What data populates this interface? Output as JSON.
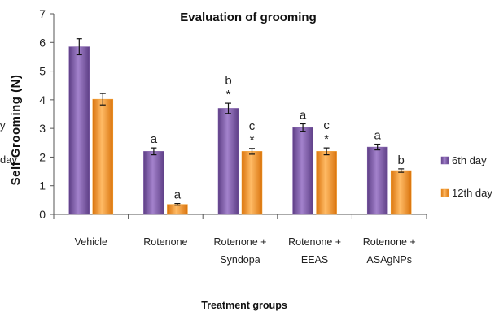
{
  "chart_data": {
    "type": "bar",
    "title": "Evaluation of grooming",
    "xlabel": "Treatment groups",
    "ylabel": "Self Grooming (N)",
    "ylim": [
      0,
      7
    ],
    "yticks": [
      "0",
      "1",
      "2",
      "3",
      "4",
      "5",
      "6",
      "7"
    ],
    "categories": [
      [
        "Vehicle"
      ],
      [
        "Rotenone"
      ],
      [
        "Rotenone +",
        "Syndopa"
      ],
      [
        "Rotenone +",
        "EEAS"
      ],
      [
        "Rotenone +",
        "ASAgNPs"
      ]
    ],
    "series": [
      {
        "name": "6th day",
        "color": "#7e5aa8",
        "values": [
          5.85,
          2.2,
          3.7,
          3.03,
          2.35
        ],
        "errors": [
          0.28,
          0.12,
          0.18,
          0.13,
          0.1
        ],
        "annotations": [
          [],
          [
            "a"
          ],
          [
            "b",
            "*"
          ],
          [
            "a"
          ],
          [
            "a"
          ]
        ]
      },
      {
        "name": "12th day",
        "color": "#f39c2a",
        "values": [
          4.02,
          0.35,
          2.2,
          2.2,
          1.53
        ],
        "errors": [
          0.2,
          0.03,
          0.1,
          0.12,
          0.06
        ],
        "annotations": [
          [],
          [
            "a"
          ],
          [
            "c",
            "*"
          ],
          [
            "c",
            "*"
          ],
          [
            "b"
          ]
        ]
      }
    ],
    "legend_position": "right",
    "grid": false
  },
  "cropped_text": [
    "y",
    "day"
  ]
}
